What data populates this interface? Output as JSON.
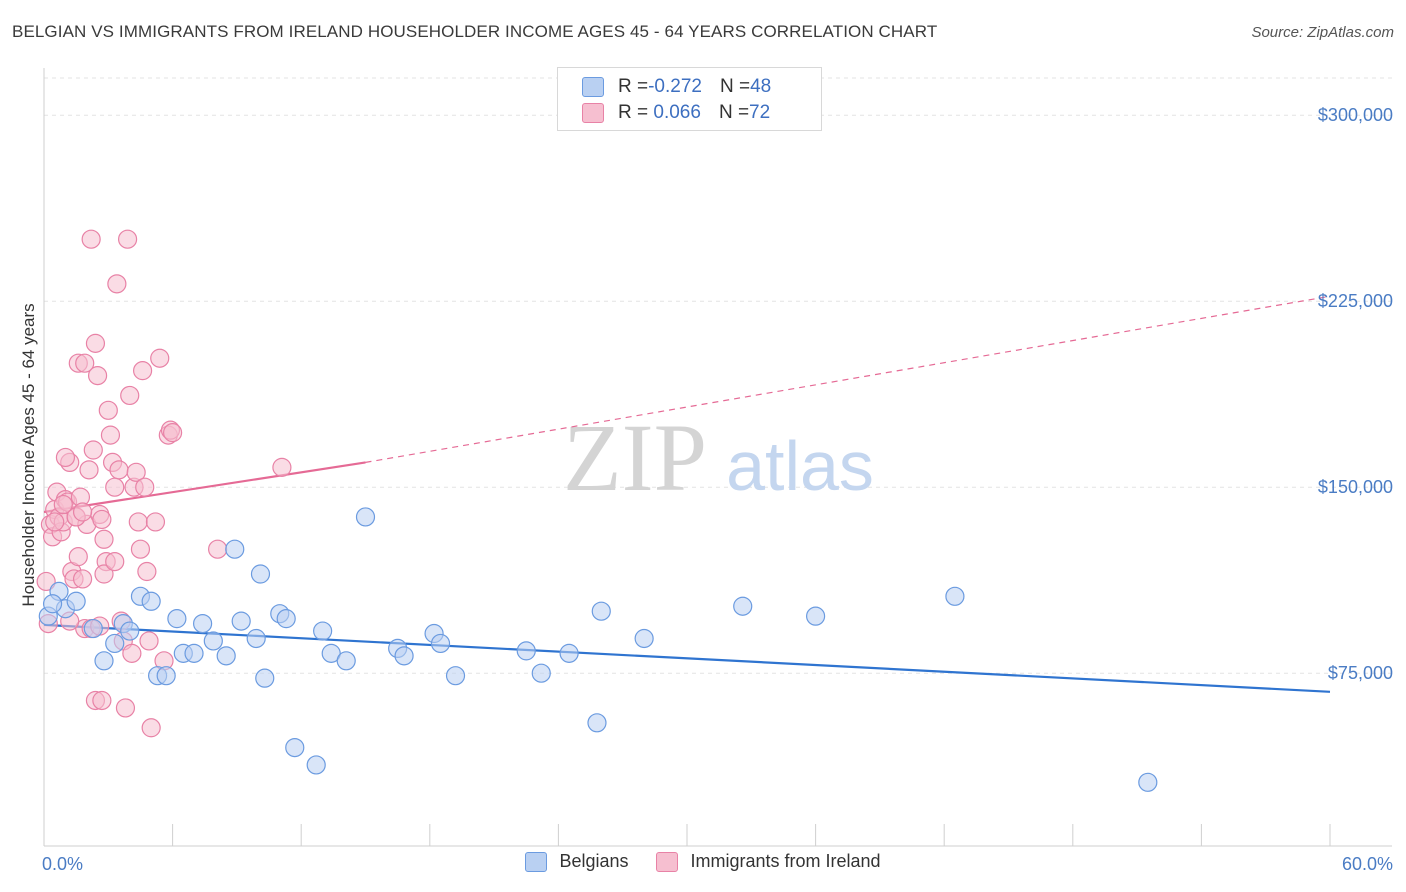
{
  "header": {
    "title": "BELGIAN VS IMMIGRANTS FROM IRELAND HOUSEHOLDER INCOME AGES 45 - 64 YEARS CORRELATION CHART",
    "source": "Source: ZipAtlas.com"
  },
  "legend_top": {
    "rows": [
      {
        "r_label": "R = ",
        "r_value": "-0.272",
        "n_label": "N = ",
        "n_value": "48"
      },
      {
        "r_label": "R = ",
        "r_value": " 0.066",
        "n_label": "N = ",
        "n_value": "72"
      }
    ]
  },
  "legend_bottom": {
    "items": [
      "Belgians",
      "Immigrants from Ireland"
    ]
  },
  "watermark": {
    "zip": "ZIP",
    "atlas": "atlas"
  },
  "colors": {
    "belgians_fill": "#b9d0f2",
    "belgians_stroke": "#6b9be0",
    "belgians_line": "#2f74d0",
    "ireland_fill": "#f6bfd0",
    "ireland_stroke": "#e882a6",
    "ireland_line": "#e56a95",
    "tick_text": "#4a7cc4"
  },
  "chart_data": {
    "type": "scatter",
    "title": "BELGIAN VS IMMIGRANTS FROM IRELAND HOUSEHOLDER INCOME AGES 45 - 64 YEARS CORRELATION CHART",
    "xlabel": "",
    "ylabel": "Householder Income Ages 45 - 64 years",
    "xlim": [
      0,
      60
    ],
    "ylim": [
      15000,
      315000
    ],
    "x_tick_labels": [
      "0.0%",
      "60.0%"
    ],
    "y_ticks": [
      75000,
      150000,
      225000,
      300000
    ],
    "y_tick_labels": [
      "$75,000",
      "$150,000",
      "$225,000",
      "$300,000"
    ],
    "grid": true,
    "legend_position": "top-center",
    "series": [
      {
        "name": "Belgians",
        "stats": {
          "R": -0.272,
          "N": 48
        },
        "points": [
          [
            0.2,
            98000
          ],
          [
            0.7,
            108000
          ],
          [
            1.0,
            101000
          ],
          [
            1.5,
            104000
          ],
          [
            2.3,
            93000
          ],
          [
            2.8,
            80000
          ],
          [
            3.3,
            87000
          ],
          [
            3.7,
            95000
          ],
          [
            4.0,
            92000
          ],
          [
            4.5,
            106000
          ],
          [
            5.0,
            104000
          ],
          [
            5.3,
            74000
          ],
          [
            5.7,
            74000
          ],
          [
            6.2,
            97000
          ],
          [
            6.5,
            83000
          ],
          [
            7.0,
            83000
          ],
          [
            7.4,
            95000
          ],
          [
            7.9,
            88000
          ],
          [
            8.5,
            82000
          ],
          [
            8.9,
            125000
          ],
          [
            9.2,
            96000
          ],
          [
            9.9,
            89000
          ],
          [
            10.1,
            115000
          ],
          [
            10.3,
            73000
          ],
          [
            11.0,
            99000
          ],
          [
            11.3,
            97000
          ],
          [
            11.7,
            45000
          ],
          [
            12.7,
            38000
          ],
          [
            13.0,
            92000
          ],
          [
            13.4,
            83000
          ],
          [
            14.1,
            80000
          ],
          [
            15.0,
            138000
          ],
          [
            16.5,
            85000
          ],
          [
            16.8,
            82000
          ],
          [
            18.2,
            91000
          ],
          [
            18.5,
            87000
          ],
          [
            19.2,
            74000
          ],
          [
            22.5,
            84000
          ],
          [
            23.2,
            75000
          ],
          [
            24.5,
            83000
          ],
          [
            25.8,
            55000
          ],
          [
            26.0,
            100000
          ],
          [
            28.0,
            89000
          ],
          [
            32.6,
            102000
          ],
          [
            36.0,
            98000
          ],
          [
            42.5,
            106000
          ],
          [
            51.5,
            31000
          ],
          [
            0.4,
            103000
          ]
        ],
        "trend": {
          "x": [
            0,
            60
          ],
          "y": [
            94500,
            67500
          ],
          "style": "solid"
        }
      },
      {
        "name": "Immigrants from Ireland",
        "stats": {
          "R": 0.066,
          "N": 72
        },
        "points": [
          [
            0.1,
            112000
          ],
          [
            0.2,
            95000
          ],
          [
            0.3,
            135000
          ],
          [
            0.4,
            130000
          ],
          [
            0.5,
            141000
          ],
          [
            0.6,
            148000
          ],
          [
            0.7,
            138000
          ],
          [
            0.8,
            132000
          ],
          [
            0.9,
            136000
          ],
          [
            1.0,
            145000
          ],
          [
            1.1,
            144000
          ],
          [
            1.2,
            160000
          ],
          [
            1.3,
            116000
          ],
          [
            1.4,
            113000
          ],
          [
            1.5,
            138000
          ],
          [
            1.6,
            122000
          ],
          [
            1.7,
            146000
          ],
          [
            1.8,
            113000
          ],
          [
            1.9,
            93000
          ],
          [
            2.0,
            135000
          ],
          [
            2.1,
            157000
          ],
          [
            2.2,
            250000
          ],
          [
            2.3,
            165000
          ],
          [
            2.4,
            208000
          ],
          [
            2.5,
            195000
          ],
          [
            2.6,
            139000
          ],
          [
            2.7,
            137000
          ],
          [
            2.8,
            129000
          ],
          [
            2.9,
            120000
          ],
          [
            3.0,
            181000
          ],
          [
            3.1,
            171000
          ],
          [
            3.2,
            160000
          ],
          [
            3.3,
            150000
          ],
          [
            3.4,
            232000
          ],
          [
            3.5,
            157000
          ],
          [
            3.6,
            96000
          ],
          [
            3.7,
            88000
          ],
          [
            3.8,
            61000
          ],
          [
            3.9,
            250000
          ],
          [
            4.0,
            187000
          ],
          [
            4.1,
            83000
          ],
          [
            4.2,
            150000
          ],
          [
            4.3,
            156000
          ],
          [
            4.4,
            136000
          ],
          [
            4.5,
            125000
          ],
          [
            4.6,
            197000
          ],
          [
            4.7,
            150000
          ],
          [
            4.8,
            116000
          ],
          [
            4.9,
            88000
          ],
          [
            5.0,
            53000
          ],
          [
            5.2,
            136000
          ],
          [
            5.4,
            202000
          ],
          [
            5.6,
            80000
          ],
          [
            5.8,
            171000
          ],
          [
            5.9,
            173000
          ],
          [
            6.0,
            172000
          ],
          [
            8.1,
            125000
          ],
          [
            11.1,
            158000
          ],
          [
            1.0,
            162000
          ],
          [
            1.6,
            200000
          ],
          [
            2.2,
            93000
          ],
          [
            2.6,
            94000
          ],
          [
            2.4,
            64000
          ],
          [
            2.7,
            64000
          ],
          [
            1.5,
            138000
          ],
          [
            0.9,
            143000
          ],
          [
            1.8,
            140000
          ],
          [
            1.2,
            96000
          ],
          [
            2.8,
            115000
          ],
          [
            3.3,
            120000
          ],
          [
            0.5,
            136000
          ],
          [
            1.9,
            200000
          ]
        ],
        "trend": {
          "x": [
            0,
            15
          ],
          "y": [
            140000,
            160000
          ],
          "style": "solid",
          "extension": {
            "x": [
              15,
              60
            ],
            "y": [
              160000,
              227000
            ],
            "style": "dashed"
          }
        }
      }
    ]
  }
}
